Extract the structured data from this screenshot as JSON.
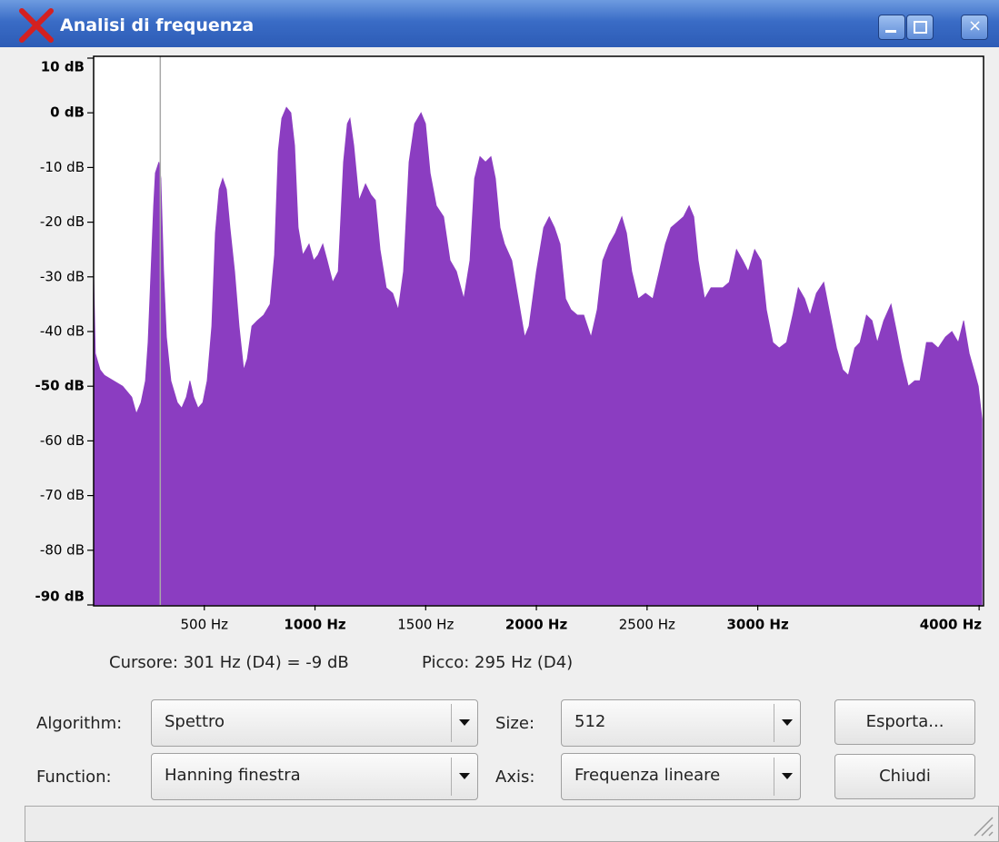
{
  "window": {
    "title": "Analisi di frequenza"
  },
  "chart_data": {
    "type": "area",
    "color": "#8b3dc1",
    "x": [
      0,
      8,
      29,
      49,
      90,
      131,
      172,
      193,
      214,
      234,
      246,
      259,
      271,
      279,
      295,
      304,
      316,
      329,
      349,
      378,
      398,
      419,
      435,
      452,
      472,
      493,
      513,
      534,
      550,
      567,
      583,
      600,
      616,
      637,
      657,
      678,
      694,
      715,
      739,
      768,
      797,
      817,
      834,
      850,
      871,
      891,
      908,
      924,
      945,
      973,
      994,
      1014,
      1035,
      1055,
      1080,
      1105,
      1129,
      1146,
      1158,
      1175,
      1199,
      1228,
      1253,
      1273,
      1294,
      1322,
      1351,
      1376,
      1400,
      1425,
      1450,
      1479,
      1499,
      1520,
      1548,
      1581,
      1610,
      1639,
      1672,
      1700,
      1721,
      1745,
      1770,
      1795,
      1815,
      1836,
      1856,
      1889,
      1918,
      1947,
      1967,
      2000,
      2033,
      2058,
      2082,
      2107,
      2132,
      2156,
      2185,
      2214,
      2247,
      2275,
      2300,
      2329,
      2357,
      2386,
      2407,
      2431,
      2460,
      2493,
      2526,
      2555,
      2583,
      2608,
      2637,
      2665,
      2690,
      2711,
      2731,
      2760,
      2789,
      2813,
      2842,
      2871,
      2904,
      2932,
      2957,
      2986,
      3015,
      3039,
      3068,
      3097,
      3130,
      3158,
      3183,
      3212,
      3236,
      3265,
      3298,
      3327,
      3356,
      3384,
      3409,
      3438,
      3462,
      3491,
      3516,
      3540,
      3569,
      3602,
      3627,
      3651,
      3680,
      3709,
      3733,
      3762,
      3787,
      3815,
      3848,
      3877,
      3906,
      3930,
      3955,
      3976,
      3996,
      4013
    ],
    "values": [
      -29,
      -44,
      -47,
      -48,
      -49,
      -50,
      -52,
      -55,
      -53,
      -49,
      -42,
      -29,
      -17,
      -11,
      -9,
      -12,
      -29,
      -41,
      -49,
      -53,
      -54,
      -52,
      -49,
      -52,
      -54,
      -53,
      -49,
      -39,
      -22,
      -14,
      -12,
      -14,
      -21,
      -29,
      -39,
      -47,
      -45,
      -39,
      -38,
      -37,
      -35,
      -26,
      -7,
      -1,
      1,
      0,
      -6,
      -21,
      -26,
      -24,
      -27,
      -26,
      -24,
      -27,
      -31,
      -29,
      -9,
      -2,
      -1,
      -6,
      -16,
      -13,
      -15,
      -16,
      -25,
      -32,
      -33,
      -36,
      -29,
      -9,
      -2,
      0,
      -2,
      -11,
      -17,
      -19,
      -27,
      -29,
      -34,
      -27,
      -12,
      -8,
      -9,
      -8,
      -12,
      -21,
      -24,
      -27,
      -34,
      -41,
      -39,
      -29,
      -21,
      -19,
      -21,
      -24,
      -34,
      -36,
      -37,
      -37,
      -41,
      -36,
      -27,
      -24,
      -22,
      -19,
      -22,
      -29,
      -34,
      -33,
      -34,
      -29,
      -24,
      -21,
      -20,
      -19,
      -17,
      -19,
      -27,
      -34,
      -32,
      -32,
      -32,
      -31,
      -25,
      -27,
      -29,
      -25,
      -27,
      -36,
      -42,
      -43,
      -42,
      -37,
      -32,
      -34,
      -37,
      -33,
      -31,
      -37,
      -43,
      -47,
      -48,
      -43,
      -42,
      -37,
      -38,
      -42,
      -38,
      -35,
      -40,
      -45,
      -50,
      -49,
      -49,
      -42,
      -42,
      -43,
      -41,
      -40,
      -42,
      -38,
      -44,
      -47,
      -50,
      -56
    ],
    "xlim": [
      0,
      4020
    ],
    "ylim": [
      -90,
      10
    ],
    "xticks": [
      {
        "value": 500,
        "label": "500 Hz"
      },
      {
        "value": 1000,
        "label": "1000 Hz",
        "bold": true
      },
      {
        "value": 1500,
        "label": "1500 Hz"
      },
      {
        "value": 2000,
        "label": "2000 Hz",
        "bold": true
      },
      {
        "value": 2500,
        "label": "2500 Hz"
      },
      {
        "value": 3000,
        "label": "3000 Hz",
        "bold": true
      },
      {
        "value": 4000,
        "label": "4000 Hz",
        "bold": true
      }
    ],
    "yticks": [
      {
        "value": 10,
        "label": "10 dB",
        "bold": true
      },
      {
        "value": 0,
        "label": "0 dB",
        "bold": true
      },
      {
        "value": -10,
        "label": "-10 dB"
      },
      {
        "value": -20,
        "label": "-20 dB"
      },
      {
        "value": -30,
        "label": "-30 dB"
      },
      {
        "value": -40,
        "label": "-40 dB"
      },
      {
        "value": -50,
        "label": "-50 dB",
        "bold": true
      },
      {
        "value": -60,
        "label": "-60 dB"
      },
      {
        "value": -70,
        "label": "-70 dB"
      },
      {
        "value": -80,
        "label": "-80 dB"
      },
      {
        "value": -90,
        "label": "-90 dB",
        "bold": true
      }
    ],
    "cursor": {
      "x": 301,
      "color": "#a8a8a8"
    }
  },
  "status": {
    "cursor": "Cursore: 301 Hz (D4) = -9 dB",
    "peak": "Picco: 295 Hz (D4)"
  },
  "controls": {
    "algorithm": {
      "label": "Algorithm:",
      "value": "Spettro"
    },
    "size": {
      "label": "Size:",
      "value": "512"
    },
    "function": {
      "label": "Function:",
      "value": "Hanning finestra"
    },
    "axis": {
      "label": "Axis:",
      "value": "Frequenza lineare"
    }
  },
  "buttons": {
    "export": "Esporta...",
    "close": "Chiudi"
  }
}
